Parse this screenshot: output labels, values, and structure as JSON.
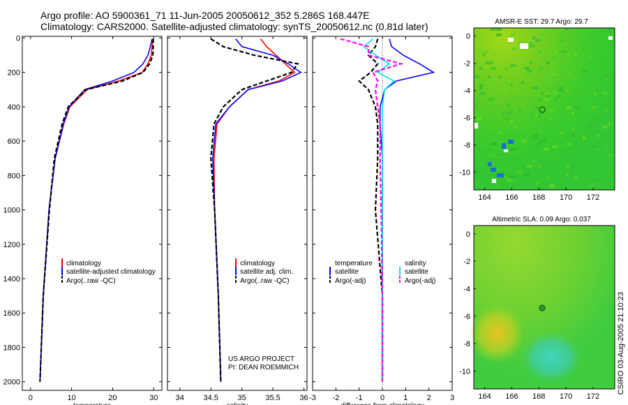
{
  "header": {
    "title_line1": "Argo profile: AO 5900361_71 11-Jun-2005 20050612_352 5.286S 168.447E",
    "title_line2": "Climatology: CARS2000. Satellite-adjusted climatology: synTS_20050612.nc (0.81d later)"
  },
  "stamp": "CSIRO 03-Aug-2005 21:10:23",
  "credit": {
    "line1": "US ARGO PROJECT",
    "line2": "PI: DEAN ROEMMICH"
  },
  "colors": {
    "climatology": "#ff0000",
    "satellite": "#0000ff",
    "argo": "#000000",
    "sal_sat": "#00e5e5",
    "sal_argo": "#ff00ff",
    "sst_green": "#33cc33",
    "marker": "#0b5d0b"
  },
  "chart_data": [
    {
      "type": "line",
      "id": "temperature",
      "xlabel": "temperature",
      "xlim": [
        -2,
        32
      ],
      "ylim": [
        2050,
        -10
      ],
      "xticks": [
        0,
        10,
        20,
        30
      ],
      "yticks": [
        0,
        200,
        400,
        600,
        800,
        1000,
        1200,
        1400,
        1600,
        1800,
        2000
      ],
      "legend": [
        "climatology",
        "satellite-adjusted climatology",
        "Argo(..raw -QC)"
      ],
      "depth": [
        5,
        50,
        100,
        150,
        200,
        250,
        300,
        400,
        500,
        700,
        1000,
        1500,
        2000
      ],
      "series": [
        {
          "name": "climatology",
          "color": "#ff0000",
          "values": [
            29.8,
            29.6,
            29.4,
            28.6,
            27.2,
            21.5,
            13.8,
            9.6,
            8.1,
            6.0,
            4.5,
            3.1,
            2.3
          ]
        },
        {
          "name": "satellite-adjusted climatology",
          "color": "#0000ff",
          "values": [
            29.6,
            29.2,
            28.6,
            27.4,
            25.2,
            20.0,
            13.2,
            9.4,
            8.0,
            6.0,
            4.5,
            3.1,
            2.3
          ]
        },
        {
          "name": "Argo(..raw -QC)",
          "color": "#000000",
          "dash": true,
          "values": [
            29.9,
            29.9,
            29.8,
            29.0,
            27.4,
            22.4,
            13.5,
            9.2,
            7.7,
            5.8,
            4.6,
            3.1,
            2.3
          ]
        }
      ]
    },
    {
      "type": "line",
      "id": "salinity",
      "xlabel": "salinity",
      "xlim": [
        33.8,
        36.05
      ],
      "ylim": [
        2050,
        -10
      ],
      "xticks": [
        34,
        34.5,
        35,
        35.5,
        36
      ],
      "legend": [
        "climatology",
        "satellite adj. clim.",
        "Argo(..raw -QC)"
      ],
      "depth": [
        5,
        50,
        100,
        150,
        200,
        250,
        300,
        400,
        500,
        700,
        1000,
        1500,
        2000
      ],
      "series": [
        {
          "name": "climatology",
          "color": "#ff0000",
          "values": [
            35.3,
            35.4,
            35.55,
            35.7,
            35.85,
            35.6,
            35.1,
            34.8,
            34.6,
            34.55,
            34.56,
            34.62,
            34.66
          ]
        },
        {
          "name": "satellite adj. clim.",
          "color": "#0000ff",
          "values": [
            34.9,
            35.0,
            35.5,
            35.75,
            35.95,
            35.65,
            35.1,
            34.8,
            34.58,
            34.53,
            34.56,
            34.62,
            34.66
          ]
        },
        {
          "name": "Argo(..raw -QC)",
          "color": "#000000",
          "dash": true,
          "values": [
            34.5,
            34.7,
            35.2,
            35.9,
            35.8,
            35.4,
            35.0,
            34.7,
            34.55,
            34.5,
            34.56,
            34.62,
            34.66
          ]
        }
      ]
    },
    {
      "type": "line",
      "id": "difference",
      "xlabel": "difference from climatology",
      "xlim": [
        -3,
        3
      ],
      "ylim": [
        2050,
        -10
      ],
      "xticks": [
        -3,
        -2,
        -1,
        0,
        1,
        2,
        3
      ],
      "legend_temperature": {
        "title": "temperature",
        "items": [
          "satellite",
          "Argo(-adj)"
        ]
      },
      "legend_salinity": {
        "title": "salinity",
        "items": [
          "satellite",
          "Argo(-adj)"
        ]
      },
      "depth": [
        5,
        50,
        100,
        150,
        200,
        250,
        300,
        400,
        500,
        700,
        1000,
        1500,
        2000
      ],
      "series": [
        {
          "name": "temperature satellite",
          "color": "#0000ff",
          "values": [
            0.3,
            0.4,
            0.9,
            1.6,
            2.2,
            0.6,
            0.1,
            -0.1,
            -0.1,
            0.0,
            0.0,
            0.0,
            0.0
          ]
        },
        {
          "name": "temperature Argo(-adj)",
          "color": "#000000",
          "dash": true,
          "values": [
            -0.2,
            -0.3,
            -0.6,
            -0.2,
            -0.5,
            -1.0,
            -0.6,
            -0.3,
            -0.2,
            -0.2,
            -0.3,
            0.0,
            0.0
          ]
        },
        {
          "name": "salinity satellite",
          "color": "#00e5e5",
          "values": [
            -0.4,
            -0.8,
            -0.3,
            0.3,
            -0.2,
            0.5,
            0.1,
            0.0,
            0.0,
            0.0,
            0.0,
            0.0,
            0.0
          ]
        },
        {
          "name": "salinity Argo(-adj)",
          "color": "#ff00ff",
          "dash": true,
          "values": [
            -1.8,
            -0.6,
            -0.6,
            0.8,
            -0.4,
            -0.2,
            -0.3,
            -0.2,
            -0.1,
            -0.1,
            -0.05,
            0.0,
            0.0
          ]
        }
      ]
    },
    {
      "type": "heatmap",
      "id": "sst_map",
      "title": "AMSR-E SST: 29.7 Argo: 29.7",
      "xlim": [
        163.2,
        173.6
      ],
      "ylim": [
        -11.3,
        0.6
      ],
      "xticks": [
        164,
        166,
        168,
        170,
        172
      ],
      "yticks": [
        0,
        -2,
        -4,
        -6,
        -8,
        -10
      ],
      "marker": {
        "lon": 168.447,
        "lat": -5.286
      }
    },
    {
      "type": "heatmap",
      "id": "sla_map",
      "title": "Altimetric SLA: 0.09 Argo: 0.037",
      "xlim": [
        163.2,
        173.6
      ],
      "ylim": [
        -11.3,
        0.6
      ],
      "xticks": [
        164,
        166,
        168,
        170,
        172
      ],
      "yticks": [
        0,
        -2,
        -4,
        -6,
        -8,
        -10
      ],
      "marker": {
        "lon": 168.447,
        "lat": -5.286
      }
    }
  ]
}
